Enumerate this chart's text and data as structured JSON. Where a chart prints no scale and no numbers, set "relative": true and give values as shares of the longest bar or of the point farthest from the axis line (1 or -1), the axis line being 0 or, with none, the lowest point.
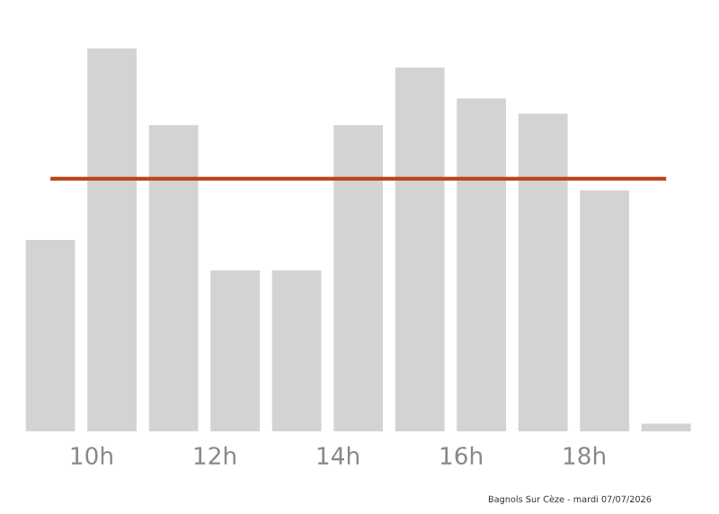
{
  "chart_data": {
    "type": "bar",
    "relative": true,
    "x": [
      9.33,
      10.33,
      11.33,
      12.33,
      13.33,
      14.33,
      15.33,
      16.33,
      17.33,
      18.33,
      19.33
    ],
    "values": [
      0.5,
      1,
      0.8,
      0.42,
      0.42,
      0.8,
      0.95,
      0.87,
      0.83,
      0.63,
      0.02
    ],
    "color": "#d3d3d3",
    "xlim": [
      8.92,
      19.75
    ],
    "xticks": [
      {
        "value": 10,
        "label": "10h"
      },
      {
        "value": 12,
        "label": "12h"
      },
      {
        "value": 14,
        "label": "14h"
      },
      {
        "value": 16,
        "label": "16h"
      },
      {
        "value": 18,
        "label": "18h"
      }
    ],
    "ref_lines": [
      {
        "axis": "y",
        "value": 0.66,
        "color": "#c0441a"
      }
    ],
    "grid": false,
    "legend": false,
    "annotations": [
      "Bagnols Sur Cèze - mardi 07/07/2026"
    ]
  }
}
